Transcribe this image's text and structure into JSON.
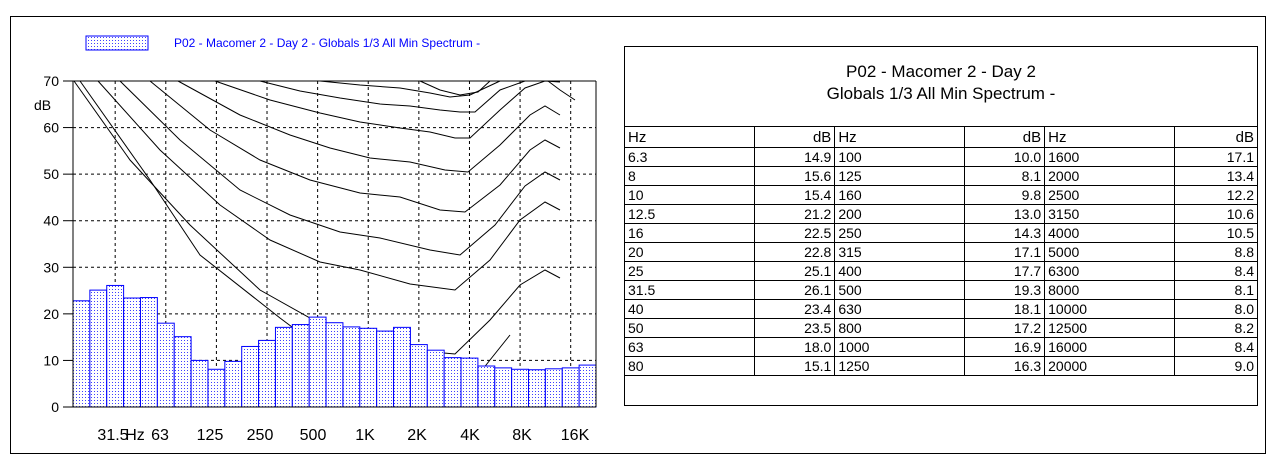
{
  "chart_data": {
    "type": "bar",
    "legend": "P02 - Macomer 2 - Day 2 - Globals 1/3 All Min Spectrum -",
    "ylabel": "dB",
    "ylim": [
      0,
      70
    ],
    "yticks": [
      "0",
      "10",
      "20",
      "30",
      "40",
      "50",
      "60",
      "70"
    ],
    "xticks": [
      "31.5",
      "Hz",
      "63",
      "125",
      "250",
      "500",
      "1K",
      "2K",
      "4K",
      "8K",
      "16K"
    ],
    "grid": true,
    "bar_color": "#0000ff",
    "categories": [
      "6.3",
      "8",
      "10",
      "12.5",
      "16",
      "20",
      "25",
      "31.5",
      "40",
      "50",
      "63",
      "80",
      "100",
      "125",
      "160",
      "200",
      "250",
      "315",
      "400",
      "500",
      "630",
      "800",
      "1000",
      "1250",
      "1600",
      "2000",
      "2500",
      "3150",
      "4000",
      "5000",
      "6300",
      "8000",
      "10000",
      "12500",
      "16000",
      "20000"
    ],
    "visible_categories": [
      "20",
      "25",
      "31.5",
      "40",
      "50",
      "63",
      "80",
      "100",
      "125",
      "160",
      "200",
      "250",
      "315",
      "400",
      "500",
      "630",
      "800",
      "1000",
      "1250",
      "1600",
      "2000",
      "2500",
      "3150",
      "4000",
      "5000",
      "6300",
      "8000",
      "10000",
      "12500",
      "16000",
      "20000"
    ],
    "values": [
      14.9,
      15.6,
      15.4,
      21.2,
      22.5,
      22.8,
      25.1,
      26.1,
      23.4,
      23.5,
      18.0,
      15.1,
      10.0,
      8.1,
      9.8,
      13.0,
      14.3,
      17.1,
      17.7,
      19.3,
      18.1,
      17.2,
      16.9,
      16.3,
      17.1,
      13.4,
      12.2,
      10.6,
      10.5,
      8.8,
      8.4,
      8.1,
      8.0,
      8.2,
      8.4,
      9.0
    ]
  },
  "table": {
    "title_line1": "P02 - Macomer 2 - Day 2",
    "title_line2": "Globals 1/3 All Min Spectrum -",
    "col_hz": "Hz",
    "col_db": "dB",
    "rows": [
      [
        "6.3",
        "14.9",
        "100",
        "10.0",
        "1600",
        "17.1"
      ],
      [
        "8",
        "15.6",
        "125",
        "8.1",
        "2000",
        "13.4"
      ],
      [
        "10",
        "15.4",
        "160",
        "9.8",
        "2500",
        "12.2"
      ],
      [
        "12.5",
        "21.2",
        "200",
        "13.0",
        "3150",
        "10.6"
      ],
      [
        "16",
        "22.5",
        "250",
        "14.3",
        "4000",
        "10.5"
      ],
      [
        "20",
        "22.8",
        "315",
        "17.1",
        "5000",
        "8.8"
      ],
      [
        "25",
        "25.1",
        "400",
        "17.7",
        "6300",
        "8.4"
      ],
      [
        "31.5",
        "26.1",
        "500",
        "19.3",
        "8000",
        "8.1"
      ],
      [
        "40",
        "23.4",
        "630",
        "18.1",
        "10000",
        "8.0"
      ],
      [
        "50",
        "23.5",
        "800",
        "17.2",
        "12500",
        "8.2"
      ],
      [
        "63",
        "18.0",
        "1000",
        "16.9",
        "16000",
        "8.4"
      ],
      [
        "80",
        "15.1",
        "1250",
        "16.3",
        "20000",
        "9.0"
      ]
    ]
  }
}
